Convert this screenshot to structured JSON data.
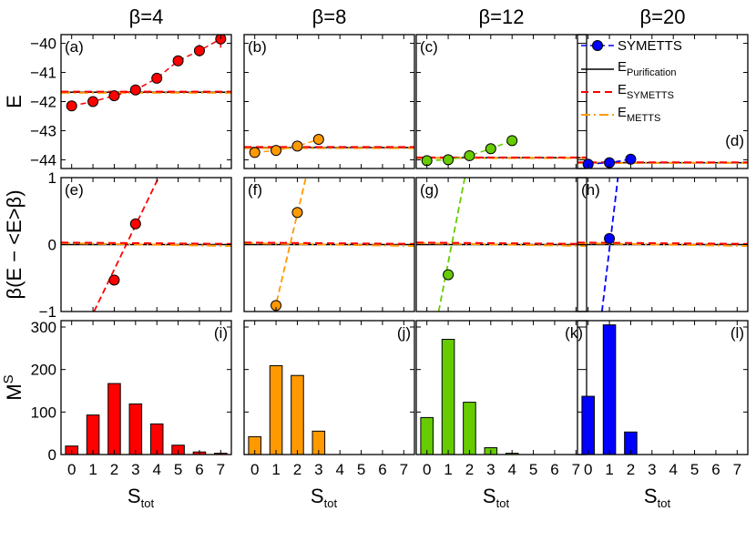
{
  "chart_data": {
    "type": "grid",
    "columns": [
      {
        "title": "β=4",
        "color": "#ff0000"
      },
      {
        "title": "β=8",
        "color": "#ff9900"
      },
      {
        "title": "β=12",
        "color": "#66cc00"
      },
      {
        "title": "β=20",
        "color": "#0000ff"
      }
    ],
    "rows": [
      {
        "id": "E",
        "ylabel": "E",
        "ylim": [
          -44.3,
          -39.7
        ],
        "yticks": [
          -44,
          -43,
          -42,
          -41,
          -40
        ],
        "ytick_labels": [
          "−44",
          "−43",
          "−42",
          "−41",
          "−40"
        ]
      },
      {
        "id": "dev",
        "ylabel": "β(E − <E>β)",
        "ylim": [
          -1,
          1
        ],
        "yticks": [
          -1,
          0,
          1
        ],
        "ytick_labels": [
          "−1",
          "0",
          "1"
        ]
      },
      {
        "id": "M",
        "ylabel": "M",
        "ylabel_sup": "S",
        "ylim": [
          0,
          315
        ],
        "yticks": [
          0,
          100,
          200,
          300
        ],
        "ytick_labels": [
          "0",
          "100",
          "200",
          "300"
        ]
      }
    ],
    "xlim": [
      -0.5,
      7.5
    ],
    "xticks": [
      0,
      1,
      2,
      3,
      4,
      5,
      6,
      7
    ],
    "xtick_labels": [
      "0",
      "1",
      "2",
      "3",
      "4",
      "5",
      "6",
      "7"
    ],
    "xlabel": "S",
    "xlabel_sub": "tot",
    "panel_labels": [
      "(a)",
      "(b)",
      "(c)",
      "(d)",
      "(e)",
      "(f)",
      "(g)",
      "(h)",
      "(i)",
      "(j)",
      "(k)",
      "(l)"
    ],
    "energy_panels": [
      {
        "panel": "(a)",
        "S": [
          0,
          1,
          2,
          3,
          4,
          5,
          6,
          7
        ],
        "E": [
          -42.15,
          -42.0,
          -41.8,
          -41.6,
          -41.2,
          -40.6,
          -40.25,
          -39.85
        ],
        "err": [
          0.1,
          0.1,
          0.1,
          0.1,
          0.1,
          0.15,
          0.2,
          0.3
        ],
        "E_purification": -41.68,
        "E_symetts": -41.66,
        "E_metts": -41.7
      },
      {
        "panel": "(b)",
        "S": [
          0,
          1,
          2,
          3
        ],
        "E": [
          -43.75,
          -43.68,
          -43.53,
          -43.3
        ],
        "err": [
          0.1,
          0.1,
          0.1,
          0.1
        ],
        "E_purification": -43.58,
        "E_symetts": -43.56,
        "E_metts": -43.6
      },
      {
        "panel": "(c)",
        "S": [
          0,
          1,
          2,
          3,
          4
        ],
        "E": [
          -44.03,
          -44.0,
          -43.86,
          -43.62,
          -43.34
        ],
        "err": [
          0.1,
          0.1,
          0.1,
          0.1,
          0.1
        ],
        "E_purification": -43.93,
        "E_symetts": -43.92,
        "E_metts": -43.94
      },
      {
        "panel": "(d)",
        "S": [
          0,
          1,
          2
        ],
        "E": [
          -44.15,
          -44.1,
          -43.98
        ],
        "err": [
          0.08,
          0.08,
          0.08
        ],
        "E_purification": -44.1,
        "E_symetts": -44.09,
        "E_metts": -44.11
      }
    ],
    "deviation_panels": [
      {
        "panel": "(e)",
        "points": [
          [
            2,
            -0.53
          ],
          [
            3,
            0.31
          ]
        ],
        "fit_x": [
          1.05,
          4.08
        ]
      },
      {
        "panel": "(f)",
        "points": [
          [
            1,
            -0.91
          ],
          [
            2,
            0.48
          ]
        ],
        "fit_x": [
          0.92,
          2.4
        ]
      },
      {
        "panel": "(g)",
        "points": [
          [
            1,
            -0.45
          ]
        ],
        "fit_x": [
          0.55,
          1.78
        ]
      },
      {
        "panel": "(h)",
        "points": [
          [
            1,
            0.09
          ]
        ],
        "fit_x": [
          0.65,
          1.4
        ]
      }
    ],
    "histogram_panels": [
      {
        "panel": "(i)",
        "S": [
          0,
          1,
          2,
          3,
          4,
          5,
          6,
          7
        ],
        "values": [
          20,
          93,
          167,
          119,
          72,
          22,
          6,
          3
        ]
      },
      {
        "panel": "(j)",
        "S": [
          0,
          1,
          2,
          3
        ],
        "values": [
          42,
          209,
          186,
          55
        ]
      },
      {
        "panel": "(k)",
        "S": [
          0,
          1,
          2,
          3,
          4
        ],
        "values": [
          87,
          271,
          123,
          16,
          3
        ]
      },
      {
        "panel": "(l)",
        "S": [
          0,
          1,
          2
        ],
        "values": [
          137,
          305,
          53
        ]
      }
    ],
    "legend": {
      "location": "top-right panel (d)",
      "entries": [
        {
          "label": "SYMETTS",
          "style": "dashed line with circle markers"
        },
        {
          "label": "E",
          "sub": "Purification",
          "style": "solid black"
        },
        {
          "label": "E",
          "sub": "SYMETTS",
          "style": "dashed red"
        },
        {
          "label": "E",
          "sub": "METTS",
          "style": "dash-dot orange"
        }
      ]
    }
  }
}
